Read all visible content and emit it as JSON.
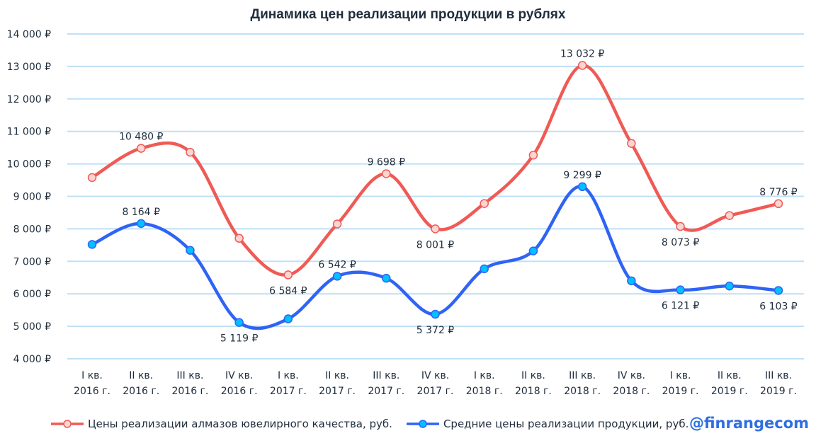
{
  "chart_data": {
    "type": "line",
    "title": "Динамика цен реализации продукции в рублях",
    "categories": [
      [
        "I кв.",
        "2016 г."
      ],
      [
        "II кв.",
        "2016 г."
      ],
      [
        "III кв.",
        "2016 г."
      ],
      [
        "IV кв.",
        "2016 г."
      ],
      [
        "I кв.",
        "2017 г."
      ],
      [
        "II кв.",
        "2017 г."
      ],
      [
        "III кв.",
        "2017 г."
      ],
      [
        "IV кв.",
        "2017 г."
      ],
      [
        "I кв.",
        "2018 г."
      ],
      [
        "II кв.",
        "2018 г."
      ],
      [
        "III кв.",
        "2018 г."
      ],
      [
        "IV кв.",
        "2018 г."
      ],
      [
        "I кв.",
        "2019 г."
      ],
      [
        "II кв.",
        "2019 г."
      ],
      [
        "III кв.",
        "2019 г."
      ]
    ],
    "ylim": [
      4000,
      14000
    ],
    "yticks": [
      "4 000 ₽",
      "5 000 ₽",
      "6 000 ₽",
      "7 000 ₽",
      "8 000 ₽",
      "9 000 ₽",
      "10 000 ₽",
      "11 000 ₽",
      "12 000 ₽",
      "13 000 ₽",
      "14 000 ₽"
    ],
    "grid": true,
    "legend_position": "bottom",
    "series": [
      {
        "name": "Цены реализации алмазов ювелирного качества, руб.",
        "color": "#f05a55",
        "marker_fill": "#fbd5d2",
        "values": [
          9580,
          10480,
          10360,
          7710,
          6584,
          8150,
          9698,
          8001,
          8780,
          10270,
          13032,
          10630,
          8073,
          8410,
          8776
        ],
        "labels": [
          null,
          "10 480 ₽",
          null,
          null,
          "6 584 ₽",
          null,
          "9 698 ₽",
          "8 001 ₽",
          null,
          null,
          "13 032 ₽",
          null,
          "8 073 ₽",
          null,
          "8 776 ₽"
        ],
        "label_pos": [
          null,
          "above",
          null,
          null,
          "below",
          null,
          "above",
          "below",
          null,
          null,
          "above",
          null,
          "below",
          null,
          "above"
        ]
      },
      {
        "name": "Средние цены реализации продукции, руб.",
        "color": "#2f63f5",
        "marker_fill": "#00c0ff",
        "values": [
          7520,
          8164,
          7340,
          5119,
          5230,
          6542,
          6480,
          5372,
          6770,
          7320,
          9299,
          6400,
          6121,
          6240,
          6103
        ],
        "labels": [
          null,
          "8 164 ₽",
          null,
          "5 119 ₽",
          null,
          "6 542 ₽",
          null,
          "5 372 ₽",
          null,
          null,
          "9 299 ₽",
          null,
          "6 121 ₽",
          null,
          "6 103 ₽"
        ],
        "label_pos": [
          null,
          "above",
          null,
          "below",
          null,
          "above",
          null,
          "below",
          null,
          null,
          "above",
          null,
          "below",
          null,
          "below"
        ]
      }
    ]
  },
  "brand": "@finrangecom"
}
